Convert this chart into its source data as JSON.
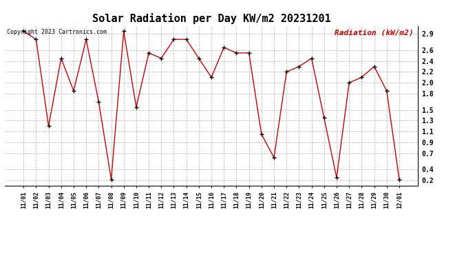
{
  "title": "Solar Radiation per Day KW/m2 20231201",
  "copyright_text": "Copyright 2023 Cartronics.com",
  "legend_text": "Radiation (kW/m2)",
  "background_color": "#ffffff",
  "line_color": "#cc0000",
  "marker_color": "#000000",
  "ylabel_color": "#cc0000",
  "grid_color": "#bbbbbb",
  "title_color": "#000000",
  "ylim": [
    0.1,
    3.05
  ],
  "yticks": [
    0.2,
    0.4,
    0.7,
    0.9,
    1.1,
    1.3,
    1.5,
    1.8,
    2.0,
    2.2,
    2.4,
    2.6,
    2.9
  ],
  "dates": [
    "11/01",
    "11/02",
    "11/03",
    "11/04",
    "11/05",
    "11/06",
    "11/07",
    "11/08",
    "11/09",
    "11/10",
    "11/11",
    "11/12",
    "11/13",
    "11/14",
    "11/15",
    "11/16",
    "11/17",
    "11/18",
    "11/19",
    "11/20",
    "11/21",
    "11/22",
    "11/23",
    "11/24",
    "11/25",
    "11/26",
    "11/27",
    "11/28",
    "11/29",
    "11/30",
    "12/01"
  ],
  "values": [
    2.95,
    2.8,
    1.2,
    2.45,
    1.85,
    2.8,
    1.65,
    0.22,
    2.95,
    1.55,
    2.55,
    2.45,
    2.8,
    2.8,
    2.45,
    2.1,
    2.65,
    2.55,
    2.55,
    1.05,
    0.62,
    2.2,
    2.3,
    2.45,
    1.35,
    0.25,
    2.0,
    2.1,
    2.3,
    1.85,
    0.22
  ]
}
